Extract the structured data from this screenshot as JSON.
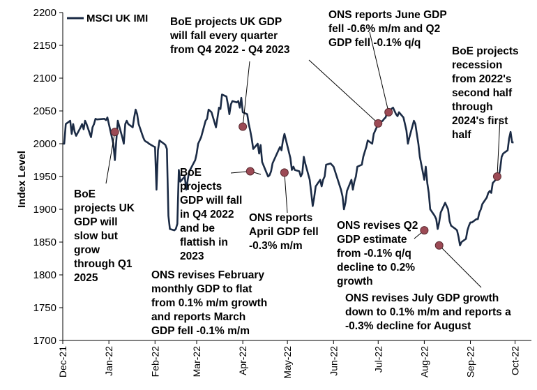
{
  "chart_data": {
    "type": "line",
    "xlabel": "",
    "ylabel": "Index Level",
    "ylim": [
      1700,
      2200
    ],
    "yticks": [
      1700,
      1750,
      1800,
      1850,
      1900,
      1950,
      2000,
      2050,
      2100,
      2150,
      2200
    ],
    "xticks": [
      "Dec-21",
      "Jan-22",
      "Feb-22",
      "Mar-22",
      "Apr-22",
      "May-22",
      "Jun-22",
      "Jul-22",
      "Aug-22",
      "Sep-22",
      "Oct-22"
    ],
    "grid": false,
    "legend_position": "top-left",
    "colors": {
      "line": "#1b2b45",
      "marker": "#9c4a55",
      "marker_edge": "#5a2a30"
    },
    "series": [
      {
        "name": "MSCI UK IMI",
        "points": [
          [
            "2021-12-01",
            2000
          ],
          [
            "2021-12-02",
            2000
          ],
          [
            "2021-12-03",
            2030
          ],
          [
            "2021-12-06",
            2035
          ],
          [
            "2021-12-07",
            2015
          ],
          [
            "2021-12-08",
            2030
          ],
          [
            "2021-12-09",
            2018
          ],
          [
            "2021-12-10",
            2012
          ],
          [
            "2021-12-13",
            2025
          ],
          [
            "2021-12-14",
            2030
          ],
          [
            "2021-12-15",
            2022
          ],
          [
            "2021-12-16",
            2035
          ],
          [
            "2021-12-17",
            2030
          ],
          [
            "2021-12-20",
            2010
          ],
          [
            "2021-12-21",
            2025
          ],
          [
            "2021-12-22",
            2030
          ],
          [
            "2021-12-23",
            2038
          ],
          [
            "2021-12-24",
            2037
          ],
          [
            "2021-12-29",
            2038
          ],
          [
            "2021-12-30",
            2036
          ],
          [
            "2021-12-31",
            2040
          ],
          [
            "2022-01-04",
            2000
          ],
          [
            "2022-01-05",
            1975
          ],
          [
            "2022-01-06",
            2005
          ],
          [
            "2022-01-07",
            2035
          ],
          [
            "2022-01-10",
            2010
          ],
          [
            "2022-01-11",
            2000
          ],
          [
            "2022-01-12",
            2030
          ],
          [
            "2022-01-13",
            2035
          ],
          [
            "2022-01-14",
            2030
          ],
          [
            "2022-01-17",
            2025
          ],
          [
            "2022-01-18",
            2040
          ],
          [
            "2022-01-19",
            2052
          ],
          [
            "2022-01-20",
            2045
          ],
          [
            "2022-01-21",
            2030
          ],
          [
            "2022-01-24",
            2010
          ],
          [
            "2022-01-25",
            2005
          ],
          [
            "2022-01-26",
            2003
          ],
          [
            "2022-01-27",
            2002
          ],
          [
            "2022-01-28",
            2000
          ],
          [
            "2022-01-31",
            1996
          ],
          [
            "2022-02-01",
            1995
          ],
          [
            "2022-02-02",
            1930
          ],
          [
            "2022-02-03",
            1990
          ],
          [
            "2022-02-04",
            2005
          ],
          [
            "2022-02-07",
            2000
          ],
          [
            "2022-02-08",
            1998
          ],
          [
            "2022-02-09",
            1992
          ],
          [
            "2022-02-10",
            1890
          ],
          [
            "2022-02-11",
            1870
          ],
          [
            "2022-02-14",
            1868
          ],
          [
            "2022-02-15",
            1870
          ],
          [
            "2022-02-16",
            1878
          ],
          [
            "2022-02-17",
            1960
          ],
          [
            "2022-02-18",
            1942
          ],
          [
            "2022-02-21",
            1950
          ],
          [
            "2022-02-22",
            1930
          ],
          [
            "2022-02-23",
            1945
          ],
          [
            "2022-02-24",
            1958
          ],
          [
            "2022-02-25",
            1962
          ],
          [
            "2022-02-28",
            1975
          ],
          [
            "2022-03-01",
            1985
          ],
          [
            "2022-03-02",
            2000
          ],
          [
            "2022-03-03",
            2005
          ],
          [
            "2022-03-04",
            2010
          ],
          [
            "2022-03-07",
            2035
          ],
          [
            "2022-03-08",
            2038
          ],
          [
            "2022-03-09",
            2052
          ],
          [
            "2022-03-10",
            2050
          ],
          [
            "2022-03-11",
            2048
          ],
          [
            "2022-03-14",
            2025
          ],
          [
            "2022-03-15",
            2040
          ],
          [
            "2022-03-16",
            2055
          ],
          [
            "2022-03-17",
            2053
          ],
          [
            "2022-03-18",
            2075
          ],
          [
            "2022-03-21",
            2072
          ],
          [
            "2022-03-22",
            2060
          ],
          [
            "2022-03-23",
            2045
          ],
          [
            "2022-03-24",
            2060
          ],
          [
            "2022-03-25",
            2065
          ],
          [
            "2022-03-28",
            2063
          ],
          [
            "2022-03-29",
            2065
          ],
          [
            "2022-03-30",
            2055
          ],
          [
            "2022-03-31",
            2070
          ],
          [
            "2022-04-01",
            2048
          ],
          [
            "2022-04-04",
            2045
          ],
          [
            "2022-04-05",
            2030
          ],
          [
            "2022-04-06",
            2020
          ],
          [
            "2022-04-07",
            2008
          ],
          [
            "2022-04-08",
            1992
          ],
          [
            "2022-04-11",
            2000
          ],
          [
            "2022-04-12",
            1985
          ],
          [
            "2022-04-13",
            1998
          ],
          [
            "2022-04-14",
            1972
          ],
          [
            "2022-04-18",
            1950
          ],
          [
            "2022-04-19",
            1952
          ],
          [
            "2022-04-20",
            1958
          ],
          [
            "2022-04-21",
            1970
          ],
          [
            "2022-04-22",
            1975
          ],
          [
            "2022-04-25",
            1990
          ],
          [
            "2022-04-26",
            1995
          ],
          [
            "2022-04-27",
            1990
          ],
          [
            "2022-04-28",
            2005
          ],
          [
            "2022-04-29",
            2015
          ],
          [
            "2022-05-03",
            1978
          ],
          [
            "2022-05-04",
            1960
          ],
          [
            "2022-05-05",
            1965
          ],
          [
            "2022-05-06",
            1960
          ],
          [
            "2022-05-09",
            1958
          ],
          [
            "2022-05-10",
            1950
          ],
          [
            "2022-05-11",
            1955
          ],
          [
            "2022-05-12",
            1980
          ],
          [
            "2022-05-13",
            1970
          ],
          [
            "2022-05-16",
            1945
          ],
          [
            "2022-05-17",
            1925
          ],
          [
            "2022-05-18",
            1905
          ],
          [
            "2022-05-19",
            1918
          ],
          [
            "2022-05-20",
            1935
          ],
          [
            "2022-05-23",
            1945
          ],
          [
            "2022-05-24",
            1935
          ],
          [
            "2022-05-25",
            1945
          ],
          [
            "2022-05-26",
            1950
          ],
          [
            "2022-05-27",
            1968
          ],
          [
            "2022-05-30",
            1970
          ],
          [
            "2022-06-01",
            1965
          ],
          [
            "2022-06-06",
            1930
          ],
          [
            "2022-06-07",
            1920
          ],
          [
            "2022-06-08",
            1900
          ],
          [
            "2022-06-09",
            1910
          ],
          [
            "2022-06-10",
            1928
          ],
          [
            "2022-06-13",
            1945
          ],
          [
            "2022-06-14",
            1930
          ],
          [
            "2022-06-15",
            1942
          ],
          [
            "2022-06-16",
            1950
          ],
          [
            "2022-06-17",
            1965
          ],
          [
            "2022-06-20",
            1968
          ],
          [
            "2022-06-21",
            1980
          ],
          [
            "2022-06-22",
            1988
          ],
          [
            "2022-06-23",
            1995
          ],
          [
            "2022-06-24",
            2005
          ],
          [
            "2022-06-27",
            2000
          ],
          [
            "2022-06-28",
            2015
          ],
          [
            "2022-06-29",
            2020
          ],
          [
            "2022-06-30",
            2025
          ],
          [
            "2022-07-01",
            2030
          ],
          [
            "2022-07-04",
            2035
          ],
          [
            "2022-07-05",
            2038
          ],
          [
            "2022-07-06",
            2040
          ],
          [
            "2022-07-07",
            2048
          ],
          [
            "2022-07-08",
            2050
          ],
          [
            "2022-07-11",
            2055
          ],
          [
            "2022-07-12",
            2050
          ],
          [
            "2022-07-13",
            2045
          ],
          [
            "2022-07-14",
            2042
          ],
          [
            "2022-07-15",
            2048
          ],
          [
            "2022-07-18",
            2040
          ],
          [
            "2022-07-19",
            2030
          ],
          [
            "2022-07-20",
            2020
          ],
          [
            "2022-07-21",
            2000
          ],
          [
            "2022-07-22",
            2010
          ],
          [
            "2022-07-25",
            2035
          ],
          [
            "2022-07-26",
            2030
          ],
          [
            "2022-07-27",
            2015
          ],
          [
            "2022-07-28",
            2000
          ],
          [
            "2022-07-29",
            1980
          ],
          [
            "2022-08-01",
            1945
          ],
          [
            "2022-08-02",
            1965
          ],
          [
            "2022-08-03",
            1940
          ],
          [
            "2022-08-04",
            1925
          ],
          [
            "2022-08-05",
            1900
          ],
          [
            "2022-08-08",
            1890
          ],
          [
            "2022-08-09",
            1885
          ],
          [
            "2022-08-10",
            1870
          ],
          [
            "2022-08-11",
            1880
          ],
          [
            "2022-08-12",
            1895
          ],
          [
            "2022-08-15",
            1910
          ],
          [
            "2022-08-16",
            1905
          ],
          [
            "2022-08-17",
            1900
          ],
          [
            "2022-08-18",
            1882
          ],
          [
            "2022-08-19",
            1875
          ],
          [
            "2022-08-22",
            1870
          ],
          [
            "2022-08-23",
            1868
          ],
          [
            "2022-08-24",
            1858
          ],
          [
            "2022-08-25",
            1845
          ],
          [
            "2022-08-26",
            1850
          ],
          [
            "2022-08-29",
            1855
          ],
          [
            "2022-08-30",
            1868
          ],
          [
            "2022-08-31",
            1875
          ],
          [
            "2022-09-01",
            1880
          ],
          [
            "2022-09-02",
            1880
          ],
          [
            "2022-09-05",
            1885
          ],
          [
            "2022-09-06",
            1885
          ],
          [
            "2022-09-07",
            1895
          ],
          [
            "2022-09-08",
            1900
          ],
          [
            "2022-09-09",
            1908
          ],
          [
            "2022-09-12",
            1918
          ],
          [
            "2022-09-13",
            1925
          ],
          [
            "2022-09-14",
            1928
          ],
          [
            "2022-09-15",
            1925
          ],
          [
            "2022-09-16",
            1940
          ],
          [
            "2022-09-20",
            1950
          ],
          [
            "2022-09-21",
            1962
          ],
          [
            "2022-09-22",
            1980
          ],
          [
            "2022-09-23",
            1985
          ],
          [
            "2022-09-26",
            1990
          ],
          [
            "2022-09-27",
            2008
          ],
          [
            "2022-09-28",
            2018
          ],
          [
            "2022-09-29",
            2002
          ],
          [
            "2022-09-30",
            2002
          ]
        ]
      }
    ],
    "markers": [
      [
        "2022-01-05",
        2018
      ],
      [
        "2022-04-01",
        2026
      ],
      [
        "2022-04-06",
        1958
      ],
      [
        "2022-04-29",
        1956
      ],
      [
        "2022-07-01",
        2031
      ],
      [
        "2022-07-08",
        2048
      ],
      [
        "2022-08-01",
        1868
      ],
      [
        "2022-08-11",
        1845
      ],
      [
        "2022-09-19",
        1950
      ]
    ],
    "annotations": [
      {
        "lines": [
          "BoE projects UK GDP",
          "will fall every quarter",
          "from Q4 2022 - Q4 2023"
        ]
      },
      {
        "lines": [
          "ONS reports June GDP",
          "fell -0.6% m/m and Q2",
          "GDP fell -0.1% q/q"
        ]
      },
      {
        "lines": [
          "BoE projects",
          "recession",
          "from 2022's",
          "second half",
          "through",
          "2024's first",
          "half"
        ]
      },
      {
        "lines": [
          "BoE",
          "projects UK",
          "GDP will",
          "slow but",
          "grow",
          "through Q1",
          "2025"
        ]
      },
      {
        "lines": [
          "BoE",
          "projects",
          "GDP will fall",
          "in Q4 2022",
          "and be",
          "flattish in",
          "2023"
        ]
      },
      {
        "lines": [
          "ONS revises February",
          "monthly GDP to flat",
          "from 0.1% m/m growth",
          "and reports March",
          "GDP fell -0.1% m/m"
        ]
      },
      {
        "lines": [
          "ONS reports",
          "April GDP fell",
          "-0.3% m/m"
        ]
      },
      {
        "lines": [
          "ONS revises Q2",
          "GDP estimate",
          "from -0.1% q/q",
          "decline to 0.2%",
          "growth"
        ]
      },
      {
        "lines": [
          "ONS revises July GDP growth",
          "down to 0.1% m/m and reports a",
          "-0.3% decline for August"
        ]
      }
    ]
  }
}
